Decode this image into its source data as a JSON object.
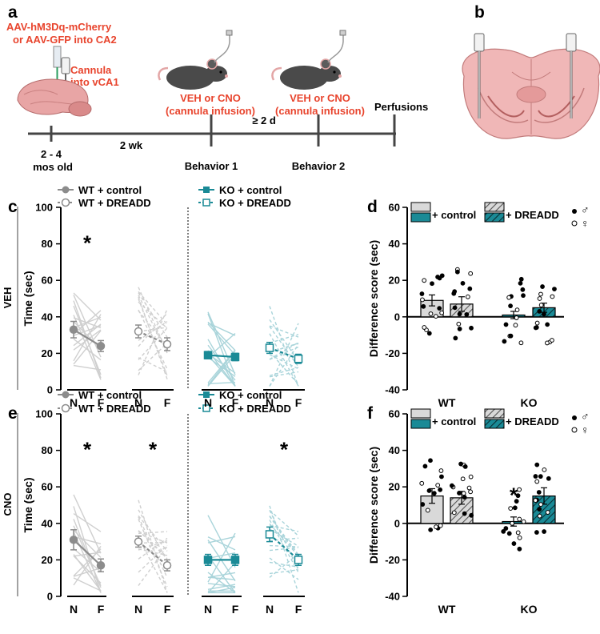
{
  "panels": {
    "a": "a",
    "b": "b",
    "c": "c",
    "d": "d",
    "e": "e",
    "f": "f"
  },
  "timeline": {
    "virus_line1": "AAV-hM3Dq-mCherry",
    "virus_line2": "or AAV-GFP into CA2",
    "cannula_line1": "Cannula",
    "cannula_line2": "into vCA1",
    "infusion1_line1": "VEH or CNO",
    "infusion1_line2": "(cannula infusion)",
    "infusion2_line1": "VEH or CNO",
    "infusion2_line2": "(cannula infusion)",
    "perfusions": "Perfusions",
    "age_line1": "2 - 4",
    "age_line2": "mos old",
    "interval1": "2 wk",
    "interval2": "≥ 2 d",
    "behavior1": "Behavior 1",
    "behavior2": "Behavior 2"
  },
  "legend": {
    "wt_control": "WT + control",
    "wt_dreadd": "WT + DREADD",
    "ko_control": "KO + control",
    "ko_dreadd": "KO + DREADD",
    "bar_control": "+ control",
    "bar_dreadd": "+ DREADD"
  },
  "sex_symbols": {
    "male": "♂",
    "female": "♀"
  },
  "row_labels": {
    "veh": "VEH",
    "cno": "CNO"
  },
  "colors": {
    "wt": "#8c8c8c",
    "wt_light": "#cfcfcf",
    "ko": "#1a8a96",
    "ko_light": "#a9d4da",
    "red": "#e8442d"
  },
  "chart_data": [
    {
      "type": "line",
      "panel": "c",
      "ylabel": "Time (sec)",
      "ylim": [
        0,
        100
      ],
      "yticks": [
        "0",
        "20",
        "40",
        "60",
        "80",
        "100"
      ],
      "categories": [
        "N",
        "F"
      ],
      "series": [
        {
          "name": "WT + control",
          "values": [
            33,
            24
          ],
          "err": [
            4.5,
            3
          ],
          "significant": true
        },
        {
          "name": "WT + DREADD",
          "values": [
            32,
            25
          ],
          "err": [
            3.5,
            3.5
          ],
          "significant": false
        },
        {
          "name": "KO + control",
          "values": [
            19,
            18
          ],
          "err": [
            2,
            2
          ],
          "significant": false
        },
        {
          "name": "KO + DREADD",
          "values": [
            23,
            17
          ],
          "err": [
            3,
            2.5
          ],
          "significant": false
        }
      ],
      "annotations": [
        "*"
      ]
    },
    {
      "type": "bar",
      "panel": "d",
      "ylabel": "Difference score (sec)",
      "ylim": [
        -40,
        60
      ],
      "yticks": [
        "-40",
        "-20",
        "0",
        "20",
        "40",
        "60"
      ],
      "categories": [
        "WT",
        "KO"
      ],
      "series": [
        {
          "name": "+ control",
          "values": [
            9,
            1
          ],
          "err": [
            3,
            2
          ]
        },
        {
          "name": "+ DREADD",
          "values": [
            7,
            5
          ],
          "err": [
            4,
            2.5
          ]
        }
      ]
    },
    {
      "type": "line",
      "panel": "e",
      "ylabel": "Time (sec)",
      "ylim": [
        0,
        100
      ],
      "yticks": [
        "0",
        "20",
        "40",
        "60",
        "80",
        "100"
      ],
      "categories": [
        "N",
        "F"
      ],
      "series": [
        {
          "name": "WT + control",
          "values": [
            31,
            17
          ],
          "err": [
            5.5,
            3.5
          ],
          "significant": true
        },
        {
          "name": "WT + DREADD",
          "values": [
            30,
            17
          ],
          "err": [
            3,
            3
          ],
          "significant": true
        },
        {
          "name": "KO + control",
          "values": [
            20,
            20
          ],
          "err": [
            3,
            3
          ],
          "significant": false
        },
        {
          "name": "KO + DREADD",
          "values": [
            34,
            20
          ],
          "err": [
            4,
            3
          ],
          "significant": true
        }
      ],
      "annotations": [
        "*",
        "*",
        "*"
      ]
    },
    {
      "type": "bar",
      "panel": "f",
      "ylabel": "Difference score (sec)",
      "ylim": [
        -40,
        60
      ],
      "yticks": [
        "-40",
        "-20",
        "0",
        "20",
        "40",
        "60"
      ],
      "categories": [
        "WT",
        "KO"
      ],
      "series": [
        {
          "name": "+ control",
          "values": [
            15,
            1
          ],
          "err": [
            4,
            2.5
          ]
        },
        {
          "name": "+ DREADD",
          "values": [
            14,
            15
          ],
          "err": [
            3.5,
            4.5
          ]
        }
      ],
      "annotations": [
        "*"
      ]
    }
  ]
}
